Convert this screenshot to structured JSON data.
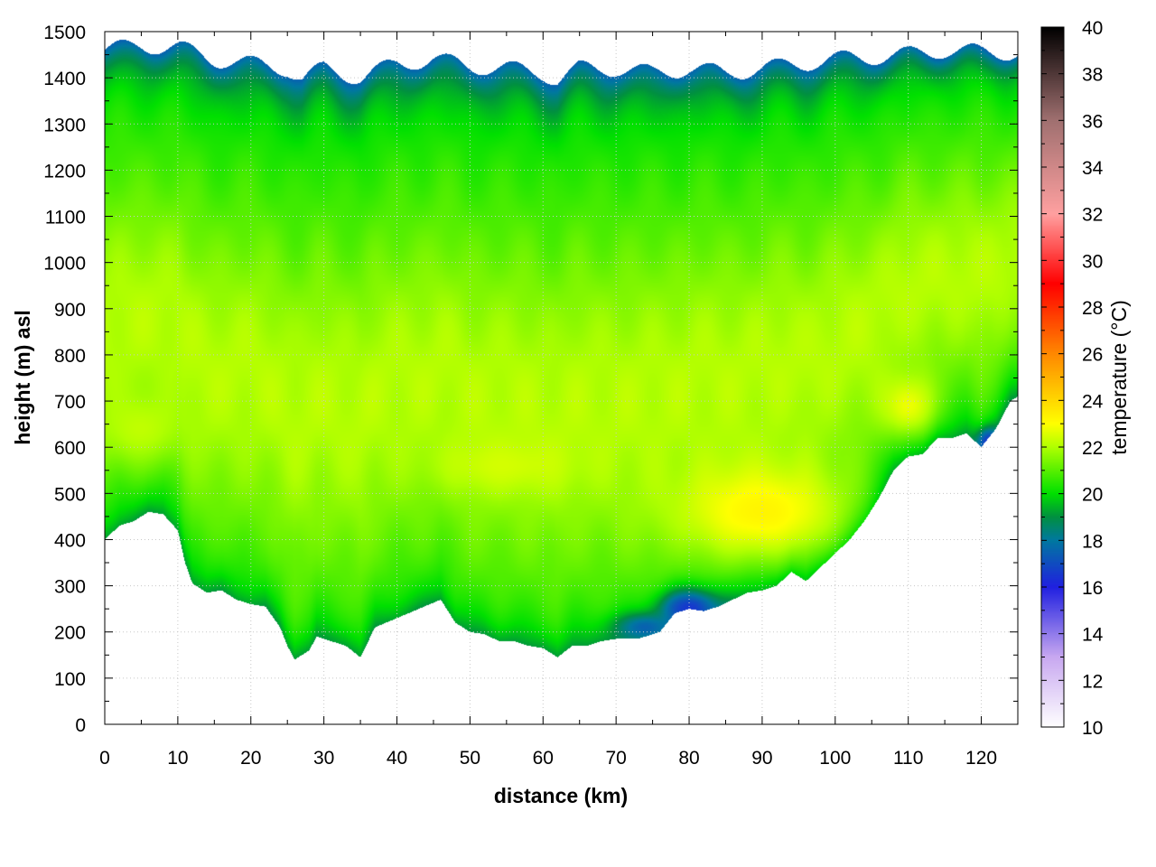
{
  "chart_data": {
    "type": "heatmap",
    "xlabel": "distance (km)",
    "ylabel": "height (m) asl",
    "colorbar_label": "temperature (°C)",
    "xlim": [
      0,
      125
    ],
    "ylim": [
      0,
      1500
    ],
    "clim": [
      10,
      40
    ],
    "x_ticks": [
      0,
      10,
      20,
      30,
      40,
      50,
      60,
      70,
      80,
      90,
      100,
      110,
      120
    ],
    "y_ticks": [
      0,
      100,
      200,
      300,
      400,
      500,
      600,
      700,
      800,
      900,
      1000,
      1100,
      1200,
      1300,
      1400,
      1500
    ],
    "colorbar_ticks": [
      10,
      12,
      14,
      16,
      18,
      20,
      22,
      24,
      26,
      28,
      30,
      32,
      34,
      36,
      38,
      40
    ],
    "grid": true,
    "colormap": [
      {
        "t": 10,
        "color": "#ffffff"
      },
      {
        "t": 13,
        "color": "#c8a8f0"
      },
      {
        "t": 16,
        "color": "#2020e0"
      },
      {
        "t": 18,
        "color": "#0078a0"
      },
      {
        "t": 19,
        "color": "#009040"
      },
      {
        "t": 20,
        "color": "#00e000"
      },
      {
        "t": 22,
        "color": "#b0ff00"
      },
      {
        "t": 23,
        "color": "#ffff00"
      },
      {
        "t": 26,
        "color": "#ff8800"
      },
      {
        "t": 29,
        "color": "#ff0000"
      },
      {
        "t": 32,
        "color": "#ffa0a0"
      },
      {
        "t": 36,
        "color": "#a07070"
      },
      {
        "t": 40,
        "color": "#000000"
      }
    ],
    "terrain": [
      [
        0,
        400
      ],
      [
        2,
        430
      ],
      [
        4,
        440
      ],
      [
        6,
        460
      ],
      [
        8,
        455
      ],
      [
        10,
        420
      ],
      [
        11,
        350
      ],
      [
        12,
        305
      ],
      [
        14,
        285
      ],
      [
        16,
        290
      ],
      [
        18,
        270
      ],
      [
        20,
        260
      ],
      [
        22,
        255
      ],
      [
        24,
        210
      ],
      [
        25,
        170
      ],
      [
        26,
        140
      ],
      [
        28,
        160
      ],
      [
        29,
        190
      ],
      [
        31,
        180
      ],
      [
        33,
        170
      ],
      [
        35,
        145
      ],
      [
        37,
        210
      ],
      [
        40,
        230
      ],
      [
        43,
        250
      ],
      [
        46,
        270
      ],
      [
        48,
        220
      ],
      [
        50,
        200
      ],
      [
        52,
        195
      ],
      [
        54,
        180
      ],
      [
        56,
        180
      ],
      [
        58,
        170
      ],
      [
        60,
        165
      ],
      [
        62,
        145
      ],
      [
        64,
        170
      ],
      [
        66,
        170
      ],
      [
        68,
        180
      ],
      [
        70,
        185
      ],
      [
        73,
        185
      ],
      [
        76,
        200
      ],
      [
        78,
        240
      ],
      [
        80,
        250
      ],
      [
        82,
        245
      ],
      [
        84,
        255
      ],
      [
        86,
        270
      ],
      [
        88,
        285
      ],
      [
        90,
        290
      ],
      [
        92,
        300
      ],
      [
        94,
        330
      ],
      [
        96,
        310
      ],
      [
        98,
        340
      ],
      [
        100,
        370
      ],
      [
        102,
        400
      ],
      [
        104,
        440
      ],
      [
        106,
        490
      ],
      [
        108,
        550
      ],
      [
        110,
        580
      ],
      [
        112,
        585
      ],
      [
        114,
        620
      ],
      [
        116,
        620
      ],
      [
        118,
        630
      ],
      [
        120,
        600
      ],
      [
        122,
        640
      ],
      [
        124,
        700
      ],
      [
        125,
        710
      ]
    ],
    "top_profile": [
      [
        0,
        1460
      ],
      [
        5,
        1470
      ],
      [
        10,
        1465
      ],
      [
        15,
        1440
      ],
      [
        20,
        1430
      ],
      [
        25,
        1420
      ],
      [
        27,
        1395
      ],
      [
        30,
        1420
      ],
      [
        35,
        1400
      ],
      [
        40,
        1430
      ],
      [
        45,
        1440
      ],
      [
        50,
        1425
      ],
      [
        55,
        1420
      ],
      [
        60,
        1410
      ],
      [
        62,
        1395
      ],
      [
        65,
        1420
      ],
      [
        70,
        1420
      ],
      [
        75,
        1410
      ],
      [
        80,
        1420
      ],
      [
        85,
        1410
      ],
      [
        90,
        1420
      ],
      [
        95,
        1430
      ],
      [
        100,
        1440
      ],
      [
        105,
        1445
      ],
      [
        110,
        1450
      ],
      [
        115,
        1460
      ],
      [
        120,
        1455
      ],
      [
        125,
        1455
      ]
    ],
    "cold_pockets": [
      {
        "x": 80,
        "y": 250,
        "rx": 4,
        "ry": 40,
        "t": 16.5
      },
      {
        "x": 74,
        "y": 210,
        "rx": 4,
        "ry": 30,
        "t": 17.5
      },
      {
        "x": 121,
        "y": 610,
        "rx": 1.5,
        "ry": 30,
        "t": 16.5
      }
    ],
    "warm_pockets": [
      {
        "x": 90,
        "y": 460,
        "rx": 12,
        "ry": 110,
        "t": 23.5
      },
      {
        "x": 110,
        "y": 690,
        "rx": 4,
        "ry": 70,
        "t": 23.0
      },
      {
        "x": 55,
        "y": 560,
        "rx": 10,
        "ry": 60,
        "t": 22.5
      },
      {
        "x": 5,
        "y": 640,
        "rx": 6,
        "ry": 80,
        "t": 22.3
      }
    ]
  }
}
